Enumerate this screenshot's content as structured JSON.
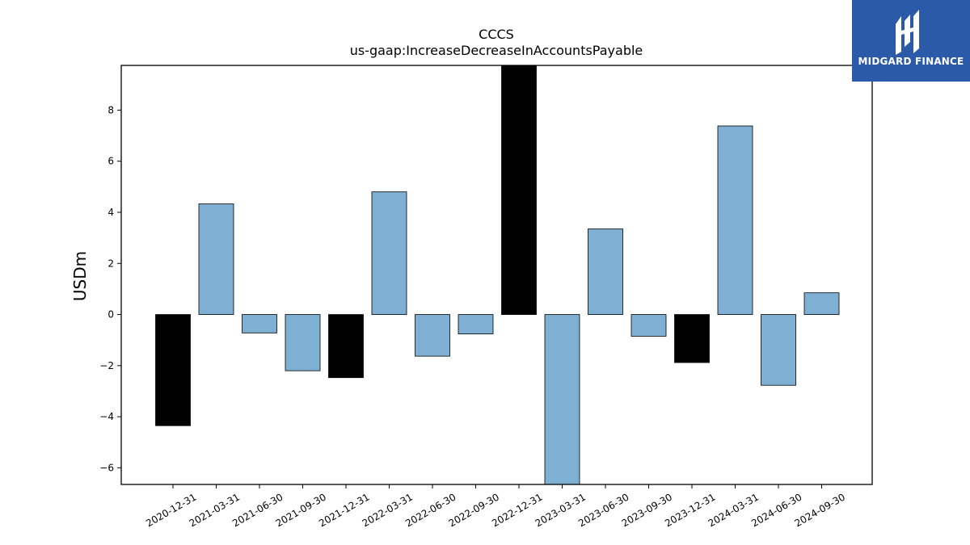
{
  "chart_data": {
    "type": "bar",
    "title": "CCCS",
    "subtitle": "us-gaap:IncreaseDecreaseInAccountsPayable",
    "xlabel": "",
    "ylabel": "USDm",
    "ylim": [
      -6.65,
      9.75
    ],
    "yticks": [
      -6,
      -4,
      -2,
      0,
      2,
      4,
      6,
      8
    ],
    "ytick_labels": [
      "−6",
      "−4",
      "−2",
      "0",
      "2",
      "4",
      "6",
      "8"
    ],
    "categories": [
      "2020-12-31",
      "2021-03-31",
      "2021-06-30",
      "2021-09-30",
      "2021-12-31",
      "2022-03-31",
      "2022-06-30",
      "2022-09-30",
      "2022-12-31",
      "2023-03-31",
      "2023-06-30",
      "2023-09-30",
      "2023-12-31",
      "2024-03-31",
      "2024-06-30",
      "2024-09-30"
    ],
    "values": [
      -4.35,
      4.33,
      -0.72,
      -2.2,
      -2.47,
      4.8,
      -1.63,
      -0.76,
      9.75,
      -6.65,
      3.35,
      -0.85,
      -1.88,
      7.38,
      -2.77,
      0.85
    ],
    "highlight": [
      true,
      false,
      false,
      false,
      true,
      false,
      false,
      false,
      true,
      false,
      false,
      false,
      true,
      false,
      false,
      false
    ],
    "colors": {
      "normal": "#7fb0d3",
      "highlight": "#000000",
      "edge": "#000000"
    },
    "grid": false
  },
  "logo": {
    "text": "MIDGARD FINANCE",
    "background": "#2b5aa8",
    "icon": "midgard-logo-icon"
  }
}
